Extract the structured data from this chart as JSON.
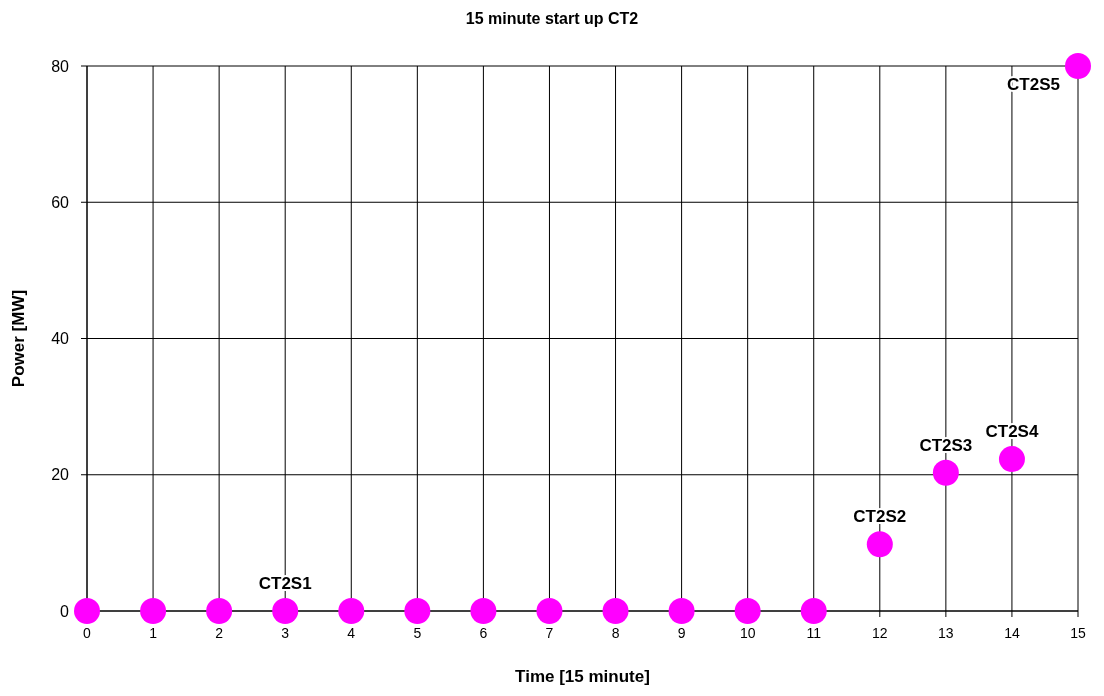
{
  "chart_data": {
    "type": "scatter",
    "title": "15 minute start up CT2",
    "xlabel": "Time [15 minute]",
    "ylabel": "Power [MW]",
    "x": [
      0,
      1,
      2,
      3,
      4,
      5,
      6,
      7,
      8,
      9,
      10,
      11,
      12,
      13,
      14,
      15
    ],
    "series": [
      {
        "color": "#ff00ff",
        "values": [
          0,
          0,
          0,
          0,
          0,
          0,
          0,
          0,
          0,
          0,
          0,
          0,
          9.8,
          20.3,
          22.3,
          80
        ]
      }
    ],
    "marker": "circle",
    "xlim": [
      0,
      15
    ],
    "xticks": [
      0,
      1,
      2,
      3,
      4,
      5,
      6,
      7,
      8,
      9,
      10,
      11,
      12,
      13,
      14,
      15
    ],
    "ylim": [
      0,
      80
    ],
    "yticks": [
      0,
      20,
      40,
      60,
      80
    ],
    "grid": true,
    "annotations": [
      {
        "text": "CT2S1",
        "x": 3,
        "y": 0
      },
      {
        "text": "CT2S2",
        "x": 12,
        "y": 9.8
      },
      {
        "text": "CT2S3",
        "x": 13,
        "y": 20.3
      },
      {
        "text": "CT2S4",
        "x": 14,
        "y": 22.3
      },
      {
        "text": "CT2S5",
        "x": 15,
        "y": 80
      }
    ]
  }
}
